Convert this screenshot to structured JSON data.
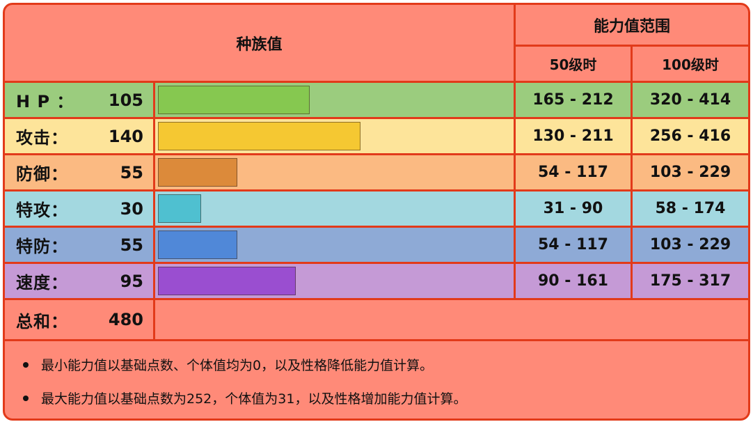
{
  "header": {
    "base_stats_label": "种族值",
    "range_label": "能力值范围",
    "lv50_label": "50级时",
    "lv100_label": "100级时"
  },
  "colors": {
    "border": "#e23a1a",
    "panel_bg": "#ff8a78"
  },
  "bar_max_value": 255,
  "stats": [
    {
      "label": "H P ：",
      "value": "105",
      "lv50": "165 - 212",
      "lv100": "320 - 414",
      "row_color": "#9bcc7e",
      "bar_color": "#86c850"
    },
    {
      "label": "攻击：",
      "value": "140",
      "lv50": "130 - 211",
      "lv100": "256 - 416",
      "row_color": "#fde49a",
      "bar_color": "#f5c832"
    },
    {
      "label": "防御：",
      "value": "55",
      "lv50": "54 - 117",
      "lv100": "103 - 229",
      "row_color": "#fbba82",
      "bar_color": "#dc8a3a"
    },
    {
      "label": "特攻：",
      "value": "30",
      "lv50": "31 - 90",
      "lv100": "58 - 174",
      "row_color": "#a3d8e0",
      "bar_color": "#4fc0d0"
    },
    {
      "label": "特防：",
      "value": "55",
      "lv50": "54 - 117",
      "lv100": "103 - 229",
      "row_color": "#8eaad6",
      "bar_color": "#5088d8"
    },
    {
      "label": "速度：",
      "value": "95",
      "lv50": "90 - 161",
      "lv100": "175 - 317",
      "row_color": "#c59ad6",
      "bar_color": "#9a4ed0"
    }
  ],
  "total": {
    "label": "总和：",
    "value": "480"
  },
  "notes": [
    "最小能力值以基础点数、个体值均为0，以及性格降低能力值计算。",
    "最大能力值以基础点数为252，个体值为31，以及性格增加能力值计算。"
  ]
}
